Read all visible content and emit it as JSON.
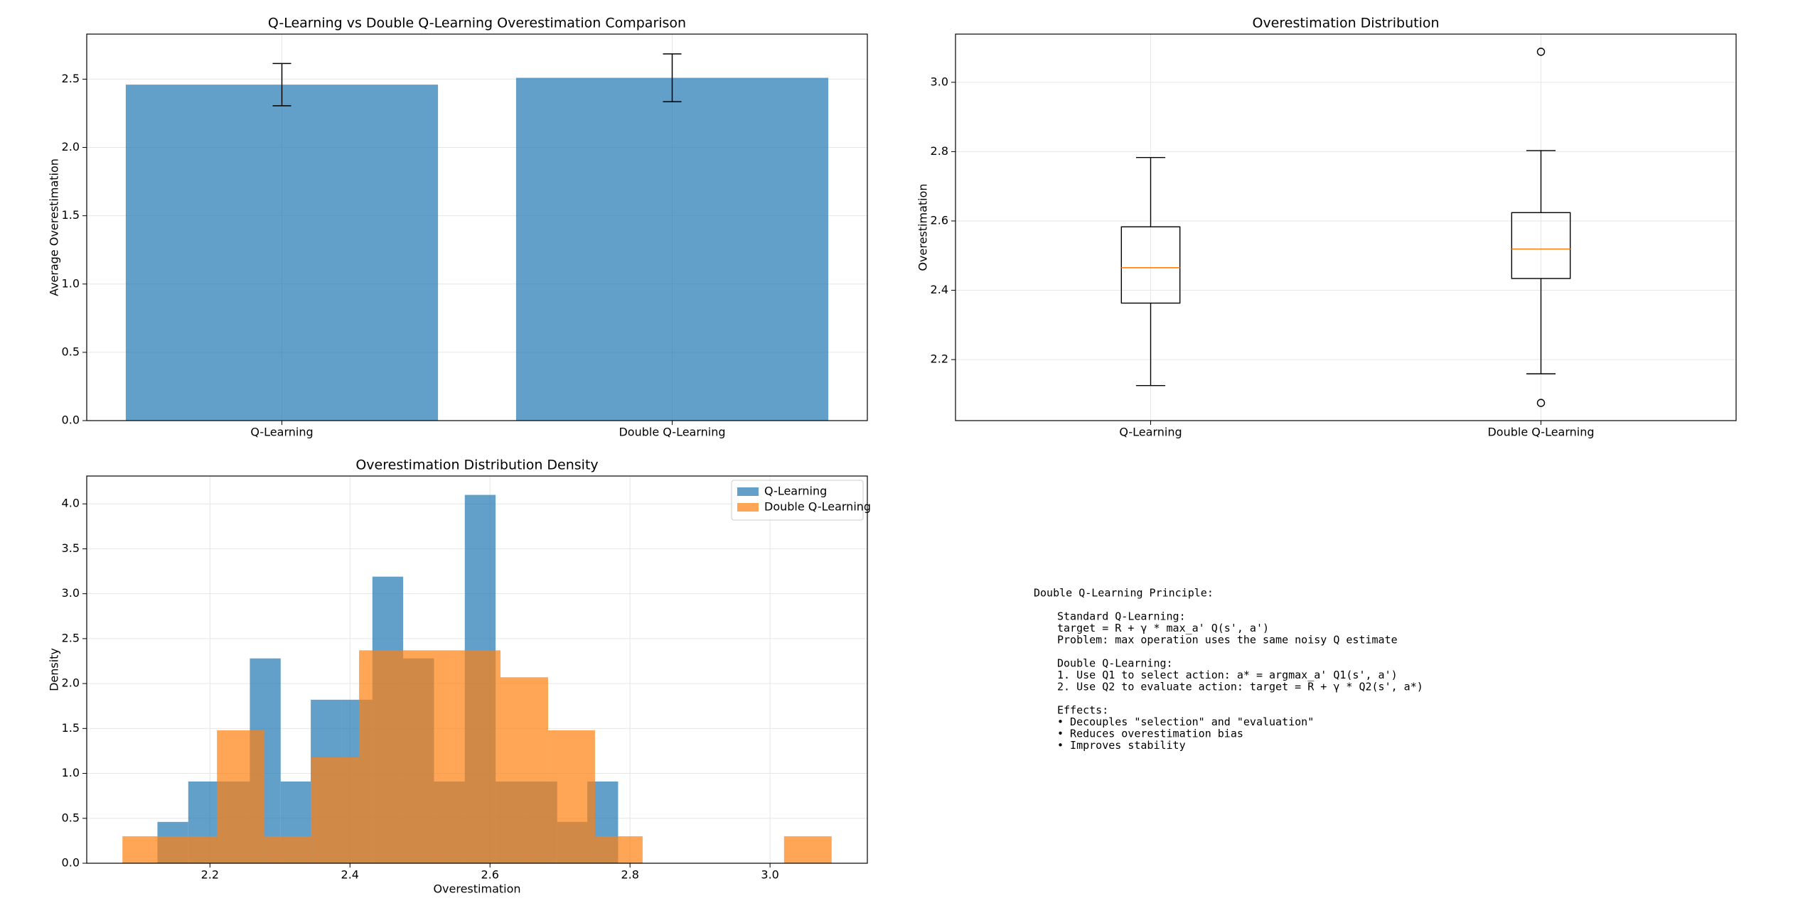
{
  "chart_data": [
    {
      "type": "bar",
      "title": "Q-Learning vs Double Q-Learning Overestimation Comparison",
      "ylabel": "Average Overestimation",
      "categories": [
        "Q-Learning",
        "Double Q-Learning"
      ],
      "values": [
        2.46,
        2.51
      ],
      "errors": [
        0.155,
        0.175
      ],
      "color": "#1f77b4",
      "ylim": [
        0,
        2.83
      ],
      "yticks": [
        {
          "value": 0,
          "label": "0.0"
        },
        0.5,
        {
          "value": 1,
          "label": "1.0"
        },
        1.5,
        {
          "value": 2,
          "label": "2.0"
        },
        2.5
      ],
      "grid": true
    },
    {
      "type": "box",
      "title": "Overestimation Distribution",
      "ylabel": "Overestimation",
      "categories": [
        "Q-Learning",
        "Double Q-Learning"
      ],
      "boxes": [
        {
          "whislo": 2.125,
          "q1": 2.363,
          "med": 2.465,
          "q3": 2.583,
          "whishi": 2.783,
          "fliers": []
        },
        {
          "whislo": 2.159,
          "q1": 2.434,
          "med": 2.519,
          "q3": 2.624,
          "whishi": 2.803,
          "fliers": [
            3.088,
            2.075
          ]
        }
      ],
      "median_color": "#ff7f0e",
      "ylim": [
        2.024,
        3.139
      ],
      "yticks": [
        2.2,
        2.4,
        2.6,
        2.8,
        {
          "value": 3,
          "label": "3.0"
        }
      ],
      "grid": true
    },
    {
      "type": "histogram",
      "title": "Overestimation Distribution Density",
      "xlabel": "Overestimation",
      "ylabel": "Density",
      "series": [
        {
          "name": "Q-Learning",
          "color": "#1f77b4",
          "bins": [
            2.125,
            2.169,
            2.213,
            2.257,
            2.301,
            2.344,
            2.388,
            2.432,
            2.476,
            2.52,
            2.564,
            2.608,
            2.652,
            2.696,
            2.739,
            2.783
          ],
          "values": [
            0.46,
            0.91,
            0.91,
            2.28,
            0.91,
            1.82,
            1.82,
            3.19,
            2.28,
            0.91,
            4.1,
            0.91,
            0.91,
            0.46,
            0.91
          ]
        },
        {
          "name": "Double Q-Learning",
          "color": "#ff7f0e",
          "bins": [
            2.075,
            2.143,
            2.21,
            2.278,
            2.345,
            2.413,
            2.48,
            2.548,
            2.615,
            2.683,
            2.75,
            2.818,
            2.885,
            2.953,
            3.02,
            3.088
          ],
          "values": [
            0.3,
            0.3,
            1.48,
            0.3,
            1.18,
            2.37,
            2.37,
            2.37,
            2.07,
            1.48,
            0.3,
            0,
            0,
            0,
            0.3
          ]
        }
      ],
      "xlim": [
        2.024,
        3.139
      ],
      "ylim": [
        0,
        4.31
      ],
      "xticks": [
        2.2,
        2.4,
        2.6,
        2.8,
        {
          "value": 3,
          "label": "3.0"
        }
      ],
      "yticks": [
        {
          "value": 0,
          "label": "0.0"
        },
        0.5,
        {
          "value": 1,
          "label": "1.0"
        },
        1.5,
        {
          "value": 2,
          "label": "2.0"
        },
        2.5,
        {
          "value": 3,
          "label": "3.0"
        },
        3.5,
        {
          "value": 4,
          "label": "4.0"
        }
      ],
      "grid": true,
      "legend": "upper right"
    }
  ],
  "text_box": {
    "title": "Double Q-Learning Principle:",
    "blocks": [
      [
        "Standard Q-Learning:",
        "target = R + γ * max_a' Q(s', a')",
        "Problem: max operation uses the same noisy Q estimate"
      ],
      [
        "Double Q-Learning:",
        "1. Use Q1 to select action: a* = argmax_a' Q1(s', a')",
        "2. Use Q2 to evaluate action: target = R + γ * Q2(s', a*)"
      ],
      [
        "Effects:",
        "• Decouples \"selection\" and \"evaluation\"",
        "• Reduces overestimation bias",
        "• Improves stability"
      ]
    ]
  }
}
